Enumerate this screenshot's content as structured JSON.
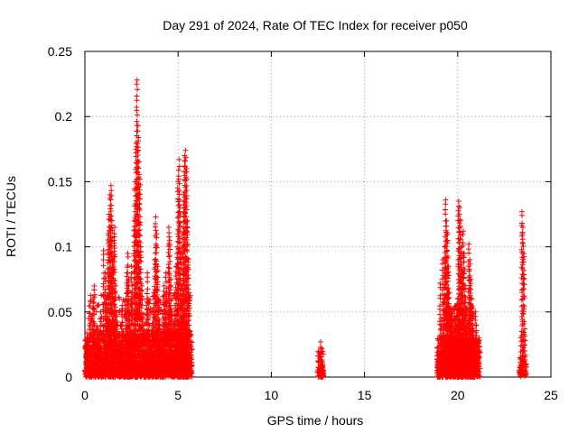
{
  "chart_data": {
    "type": "scatter",
    "title": "Day 291 of 2024, Rate Of TEC Index for receiver p050",
    "xlabel": "GPS time / hours",
    "ylabel": "ROTI / TECUs",
    "xlim": [
      0,
      25
    ],
    "ylim": [
      0,
      0.25
    ],
    "xticks": [
      0,
      5,
      10,
      15,
      20,
      25
    ],
    "yticks": [
      0,
      0.05,
      0.1,
      0.15,
      0.2,
      0.25
    ],
    "xtick_labels": [
      "0",
      "5",
      "10",
      "15",
      "20",
      "25"
    ],
    "ytick_labels": [
      "0",
      "0.05",
      "0.1",
      "0.15",
      "0.2",
      "0.25"
    ],
    "grid": true,
    "marker": "+",
    "marker_color": "#ff0000",
    "series": [
      {
        "points": [
          [
            0.05,
            0.01
          ],
          [
            0.1,
            0.02
          ],
          [
            0.15,
            0.03
          ],
          [
            0.2,
            0.006
          ],
          [
            0.25,
            0.04
          ],
          [
            0.3,
            0.058
          ],
          [
            0.35,
            0.015
          ],
          [
            0.4,
            0.045
          ],
          [
            0.45,
            0.06
          ],
          [
            0.5,
            0.07
          ],
          [
            0.55,
            0.025
          ],
          [
            0.6,
            0.008
          ],
          [
            0.65,
            0.035
          ],
          [
            0.7,
            0.012
          ],
          [
            0.75,
            0.028
          ],
          [
            0.8,
            0.018
          ],
          [
            0.85,
            0.05
          ],
          [
            0.9,
            0.022
          ],
          [
            0.95,
            0.01
          ],
          [
            1.0,
            0.097
          ],
          [
            1.05,
            0.03
          ],
          [
            1.1,
            0.08
          ],
          [
            1.15,
            0.06
          ],
          [
            1.2,
            0.045
          ],
          [
            1.25,
            0.11
          ],
          [
            1.3,
            0.125
          ],
          [
            1.35,
            0.14
          ],
          [
            1.4,
            0.147
          ],
          [
            1.45,
            0.12
          ],
          [
            1.5,
            0.09
          ],
          [
            1.55,
            0.105
          ],
          [
            1.6,
            0.115
          ],
          [
            1.65,
            0.07
          ],
          [
            1.7,
            0.05
          ],
          [
            1.75,
            0.035
          ],
          [
            1.8,
            0.02
          ],
          [
            1.85,
            0.012
          ],
          [
            1.9,
            0.025
          ],
          [
            1.95,
            0.04
          ],
          [
            2.0,
            0.055
          ],
          [
            2.05,
            0.03
          ],
          [
            2.1,
            0.015
          ],
          [
            2.15,
            0.008
          ],
          [
            2.2,
            0.06
          ],
          [
            2.25,
            0.08
          ],
          [
            2.3,
            0.095
          ],
          [
            2.35,
            0.075
          ],
          [
            2.4,
            0.05
          ],
          [
            2.45,
            0.035
          ],
          [
            2.5,
            0.085
          ],
          [
            2.55,
            0.065
          ],
          [
            2.6,
            0.04
          ],
          [
            2.65,
            0.12
          ],
          [
            2.7,
            0.15
          ],
          [
            2.75,
            0.18
          ],
          [
            2.8,
            0.228
          ],
          [
            2.85,
            0.193
          ],
          [
            2.9,
            0.165
          ],
          [
            2.95,
            0.152
          ],
          [
            3.0,
            0.1
          ],
          [
            3.05,
            0.07
          ],
          [
            3.1,
            0.045
          ],
          [
            3.15,
            0.02
          ],
          [
            3.2,
            0.01
          ],
          [
            3.25,
            0.03
          ],
          [
            3.3,
            0.055
          ],
          [
            3.35,
            0.08
          ],
          [
            3.4,
            0.06
          ],
          [
            3.45,
            0.04
          ],
          [
            3.5,
            0.025
          ],
          [
            3.55,
            0.015
          ],
          [
            3.6,
            0.035
          ],
          [
            3.65,
            0.05
          ],
          [
            3.7,
            0.065
          ],
          [
            3.75,
            0.09
          ],
          [
            3.8,
            0.123
          ],
          [
            3.85,
            0.11
          ],
          [
            3.9,
            0.085
          ],
          [
            3.95,
            0.06
          ],
          [
            4.0,
            0.04
          ],
          [
            4.05,
            0.02
          ],
          [
            4.1,
            0.012
          ],
          [
            4.15,
            0.03
          ],
          [
            4.2,
            0.045
          ],
          [
            4.25,
            0.07
          ],
          [
            4.3,
            0.055
          ],
          [
            4.35,
            0.08
          ],
          [
            4.4,
            0.065
          ],
          [
            4.45,
            0.04
          ],
          [
            4.5,
            0.115
          ],
          [
            4.55,
            0.105
          ],
          [
            4.6,
            0.075
          ],
          [
            4.65,
            0.05
          ],
          [
            4.7,
            0.03
          ],
          [
            4.75,
            0.018
          ],
          [
            4.8,
            0.04
          ],
          [
            4.85,
            0.06
          ],
          [
            4.9,
            0.085
          ],
          [
            4.95,
            0.1
          ],
          [
            5.0,
            0.15
          ],
          [
            5.05,
            0.167
          ],
          [
            5.1,
            0.13
          ],
          [
            5.15,
            0.095
          ],
          [
            5.2,
            0.07
          ],
          [
            5.25,
            0.11
          ],
          [
            5.3,
            0.14
          ],
          [
            5.35,
            0.17
          ],
          [
            5.4,
            0.174
          ],
          [
            5.45,
            0.16
          ],
          [
            5.5,
            0.12
          ],
          [
            5.55,
            0.09
          ],
          [
            5.6,
            0.06
          ],
          [
            5.65,
            0.035
          ],
          [
            5.7,
            0.015
          ],
          [
            12.5,
            0.005
          ],
          [
            12.55,
            0.012
          ],
          [
            12.6,
            0.018
          ],
          [
            12.65,
            0.027
          ],
          [
            12.7,
            0.022
          ],
          [
            12.75,
            0.008
          ],
          [
            18.9,
            0.005
          ],
          [
            19.0,
            0.02
          ],
          [
            19.05,
            0.072
          ],
          [
            19.1,
            0.045
          ],
          [
            19.15,
            0.03
          ],
          [
            19.2,
            0.09
          ],
          [
            19.25,
            0.06
          ],
          [
            19.3,
            0.1
          ],
          [
            19.35,
            0.136
          ],
          [
            19.4,
            0.12
          ],
          [
            19.45,
            0.11
          ],
          [
            19.5,
            0.085
          ],
          [
            19.55,
            0.065
          ],
          [
            19.6,
            0.04
          ],
          [
            19.65,
            0.025
          ],
          [
            19.7,
            0.05
          ],
          [
            19.75,
            0.03
          ],
          [
            19.8,
            0.015
          ],
          [
            19.85,
            0.045
          ],
          [
            19.9,
            0.04
          ],
          [
            19.95,
            0.055
          ],
          [
            20.0,
            0.06
          ],
          [
            20.05,
            0.135
          ],
          [
            20.1,
            0.13
          ],
          [
            20.15,
            0.12
          ],
          [
            20.2,
            0.1
          ],
          [
            20.25,
            0.08
          ],
          [
            20.3,
            0.112
          ],
          [
            20.35,
            0.095
          ],
          [
            20.4,
            0.07
          ],
          [
            20.45,
            0.05
          ],
          [
            20.5,
            0.035
          ],
          [
            20.55,
            0.025
          ],
          [
            20.6,
            0.102
          ],
          [
            20.65,
            0.09
          ],
          [
            20.7,
            0.075
          ],
          [
            20.75,
            0.06
          ],
          [
            20.8,
            0.045
          ],
          [
            20.85,
            0.03
          ],
          [
            20.9,
            0.015
          ],
          [
            20.95,
            0.05
          ],
          [
            21.0,
            0.04
          ],
          [
            21.05,
            0.025
          ],
          [
            21.1,
            0.01
          ],
          [
            23.3,
            0.005
          ],
          [
            23.35,
            0.015
          ],
          [
            23.4,
            0.03
          ],
          [
            23.45,
            0.127
          ],
          [
            23.5,
            0.115
          ],
          [
            23.55,
            0.095
          ],
          [
            23.6,
            0.037
          ],
          [
            23.65,
            0.01
          ]
        ],
        "dense_bands": [
          {
            "x": [
              0.0,
              5.75
            ],
            "y": [
              0.0,
              0.035
            ],
            "n": 1400
          },
          {
            "x": [
              0.2,
              5.7
            ],
            "y": [
              0.0,
              0.065
            ],
            "n": 500
          },
          {
            "x": [
              12.5,
              12.8
            ],
            "y": [
              0.0,
              0.022
            ],
            "n": 60
          },
          {
            "x": [
              18.9,
              21.2
            ],
            "y": [
              0.0,
              0.03
            ],
            "n": 700
          },
          {
            "x": [
              19.4,
              20.9
            ],
            "y": [
              0.0,
              0.055
            ],
            "n": 450
          },
          {
            "x": [
              23.3,
              23.7
            ],
            "y": [
              0.0,
              0.018
            ],
            "n": 40
          }
        ]
      }
    ]
  }
}
